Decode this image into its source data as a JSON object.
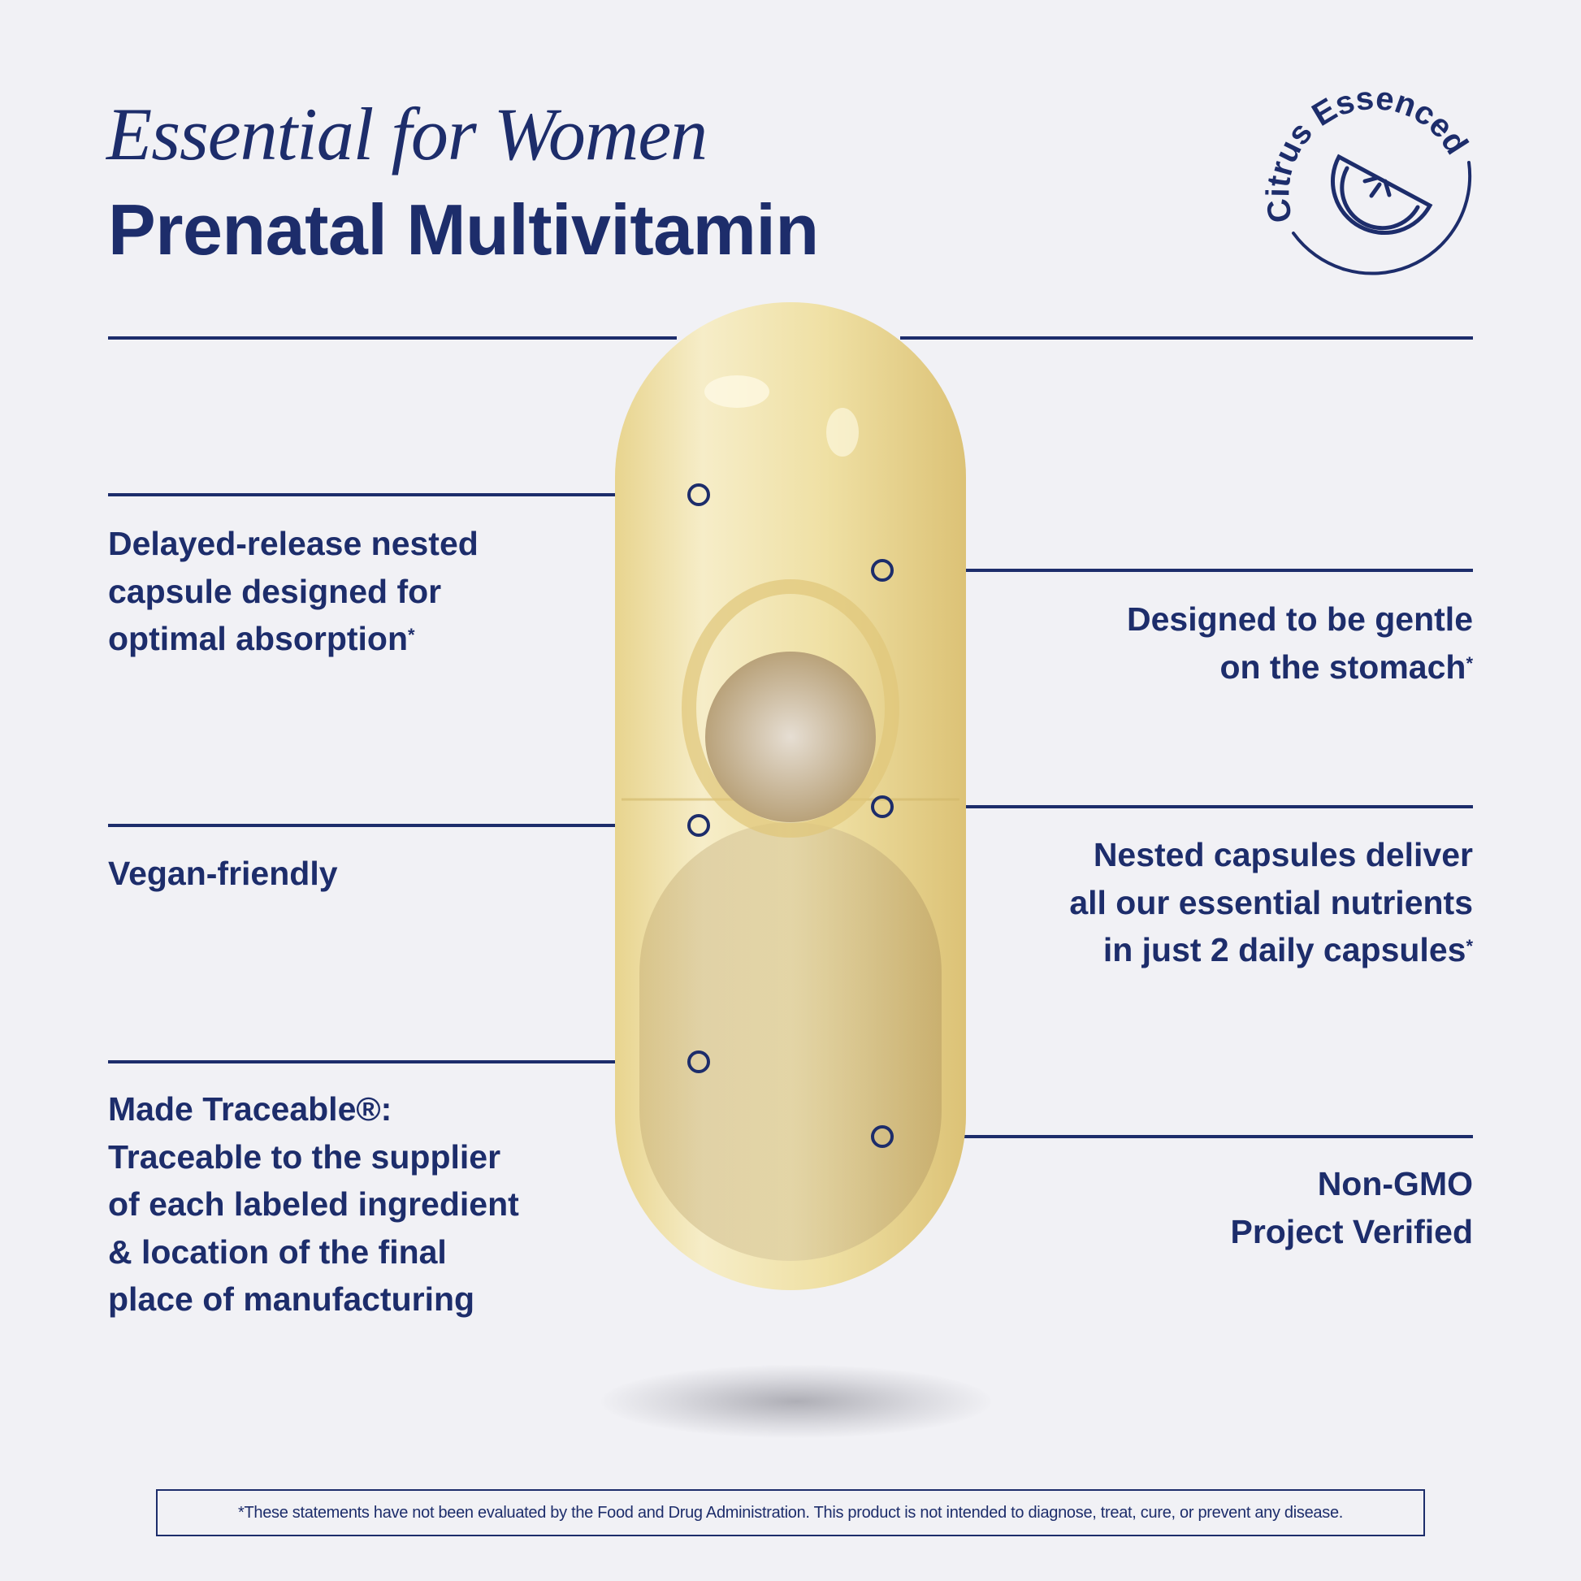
{
  "header": {
    "script_title": "Essential for Women",
    "title": "Prenatal Multivitamin"
  },
  "badge": {
    "text": "Citrus Essenced",
    "icon": "citrus-slice-icon"
  },
  "features": {
    "left": [
      {
        "text": "Delayed-release nested\ncapsule designed for\noptimal absorption",
        "mark": "*"
      },
      {
        "text": "Vegan-friendly",
        "mark": ""
      },
      {
        "text": "Made Traceable®:\nTraceable to the supplier\nof each labeled ingredient\n& location of the final\nplace of manufacturing",
        "mark": ""
      }
    ],
    "right": [
      {
        "text": "Designed to be gentle\non the stomach",
        "mark": "*"
      },
      {
        "text": "Nested capsules deliver\nall our essential nutrients\nin just 2 daily capsules",
        "mark": "*"
      },
      {
        "text": "Non-GMO\nProject Verified",
        "mark": ""
      }
    ]
  },
  "disclaimer": "*These statements have not been evaluated by the Food and Drug Administration. This product is not intended to diagnose, treat, cure, or prevent any disease.",
  "colors": {
    "accent": "#1d2d6b",
    "background": "#f1f1f5",
    "capsule": "#e9d79a"
  }
}
